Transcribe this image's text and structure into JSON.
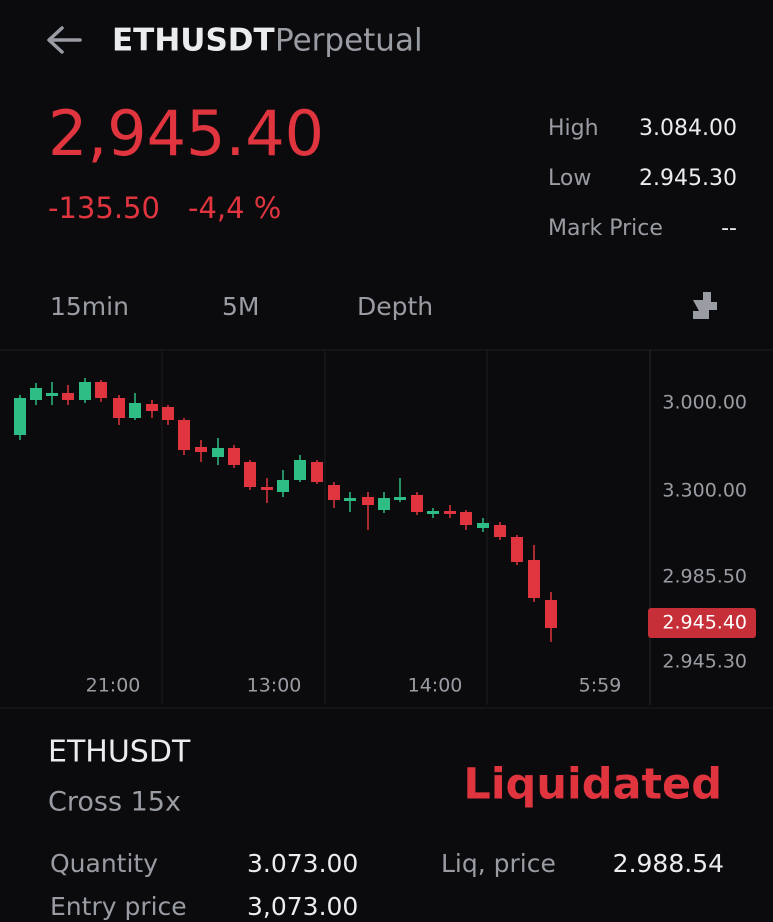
{
  "header": {
    "symbol": "ETHUSDT",
    "contract": "Perpetual"
  },
  "ticker": {
    "price": "2,945.40",
    "change": "-135.50",
    "change_pct": "-4,4 %",
    "stats": [
      {
        "label": "High",
        "value": "3.084.00"
      },
      {
        "label": "Low",
        "value": "2.945.30"
      },
      {
        "label": "Mark Price",
        "value": "--"
      }
    ]
  },
  "tabs": [
    "15min",
    "5M",
    "Depth"
  ],
  "chart": {
    "price_axis": [
      "3.000.00",
      "3.300.00",
      "2.985.50",
      "2.945.30"
    ],
    "current_price": "2.945.40",
    "time_axis": [
      "21:00",
      "13:00",
      "14:00",
      "5:59"
    ]
  },
  "position": {
    "symbol": "ETHUSDT",
    "margin": "Cross 15x",
    "status": "Liquidated",
    "fields": [
      {
        "label": "Quantity",
        "value": "3.073.00"
      },
      {
        "label": "Liq, price",
        "value": "2.988.54"
      },
      {
        "label": "Entry price",
        "value": "3,073.00"
      }
    ]
  }
}
